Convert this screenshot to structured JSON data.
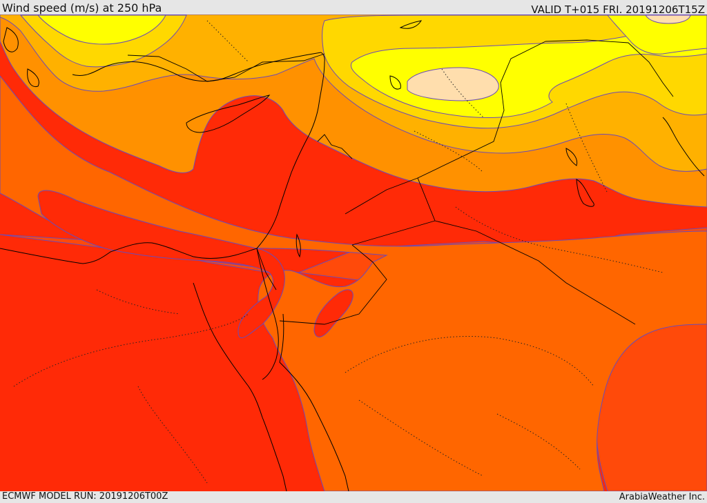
{
  "header": {
    "title": "Wind speed (m/s) at 250 hPa",
    "valid_time": "VALID T+015 FRI. 20191206T15Z"
  },
  "footer": {
    "model_run": "ECMWF MODEL RUN: 20191206T00Z",
    "credit": "ArabiaWeather Inc."
  },
  "map": {
    "field": "wind speed",
    "level_hpa": 250,
    "units": "m/s",
    "fill_colors": {
      "lowest_band": "#ff2a07",
      "low_band": "#ff4a0a",
      "mid_low_band": "#ff6600",
      "mid_band": "#ff9100",
      "upper_mid_band": "#ffb100",
      "high_band": "#ffd800",
      "very_high_band": "#ffff00",
      "peak_band": "#ffdead"
    },
    "contour_color": "#6a4ab8",
    "coastline_color": "#000000"
  }
}
